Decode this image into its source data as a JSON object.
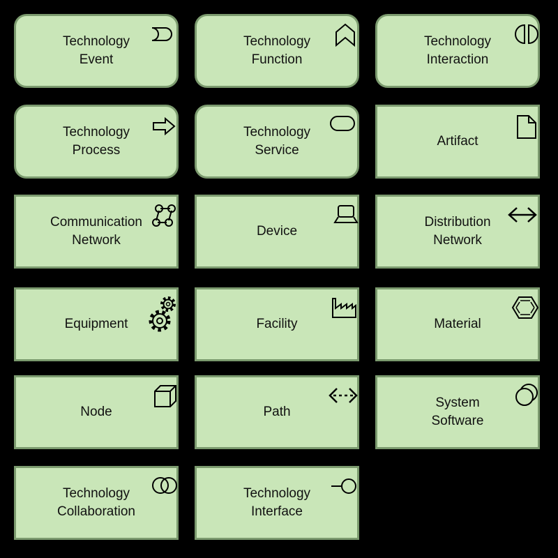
{
  "diagram_title": "",
  "colors": {
    "background": "#000000",
    "fill": "#c9e6b8",
    "border": "#7b9a6e",
    "icon": "#000000"
  },
  "elements": [
    {
      "key": "technology-event",
      "label": "Technology\nEvent",
      "shape": "rounded",
      "icon": "event-icon"
    },
    {
      "key": "technology-function",
      "label": "Technology\nFunction",
      "shape": "rounded",
      "icon": "function-icon"
    },
    {
      "key": "technology-interaction",
      "label": "Technology\nInteraction",
      "shape": "rounded",
      "icon": "interaction-icon"
    },
    {
      "key": "technology-process",
      "label": "Technology\nProcess",
      "shape": "rounded",
      "icon": "process-arrow-icon"
    },
    {
      "key": "technology-service",
      "label": "Technology\nService",
      "shape": "rounded",
      "icon": "service-icon"
    },
    {
      "key": "artifact",
      "label": "Artifact",
      "shape": "rect",
      "icon": "artifact-icon"
    },
    {
      "key": "communication-network",
      "label": "Communication\nNetwork",
      "shape": "rect",
      "icon": "network-icon"
    },
    {
      "key": "device",
      "label": "Device",
      "shape": "rect",
      "icon": "device-icon"
    },
    {
      "key": "distribution-network",
      "label": "Distribution\nNetwork",
      "shape": "rect",
      "icon": "double-arrow-icon"
    },
    {
      "key": "equipment",
      "label": "Equipment",
      "shape": "rect",
      "icon": "gears-icon"
    },
    {
      "key": "facility",
      "label": "Facility",
      "shape": "rect",
      "icon": "factory-icon"
    },
    {
      "key": "material",
      "label": "Material",
      "shape": "rect",
      "icon": "hexagon-icon"
    },
    {
      "key": "node",
      "label": "Node",
      "shape": "rect",
      "icon": "cube-icon"
    },
    {
      "key": "path",
      "label": "Path",
      "shape": "rect",
      "icon": "dashed-arrow-icon"
    },
    {
      "key": "system-software",
      "label": "System\nSoftware",
      "shape": "rect",
      "icon": "system-software-icon"
    },
    {
      "key": "technology-collaboration",
      "label": "Technology\nCollaboration",
      "shape": "rect",
      "icon": "collaboration-icon"
    },
    {
      "key": "technology-interface",
      "label": "Technology\nInterface",
      "shape": "rect",
      "icon": "interface-icon"
    }
  ]
}
